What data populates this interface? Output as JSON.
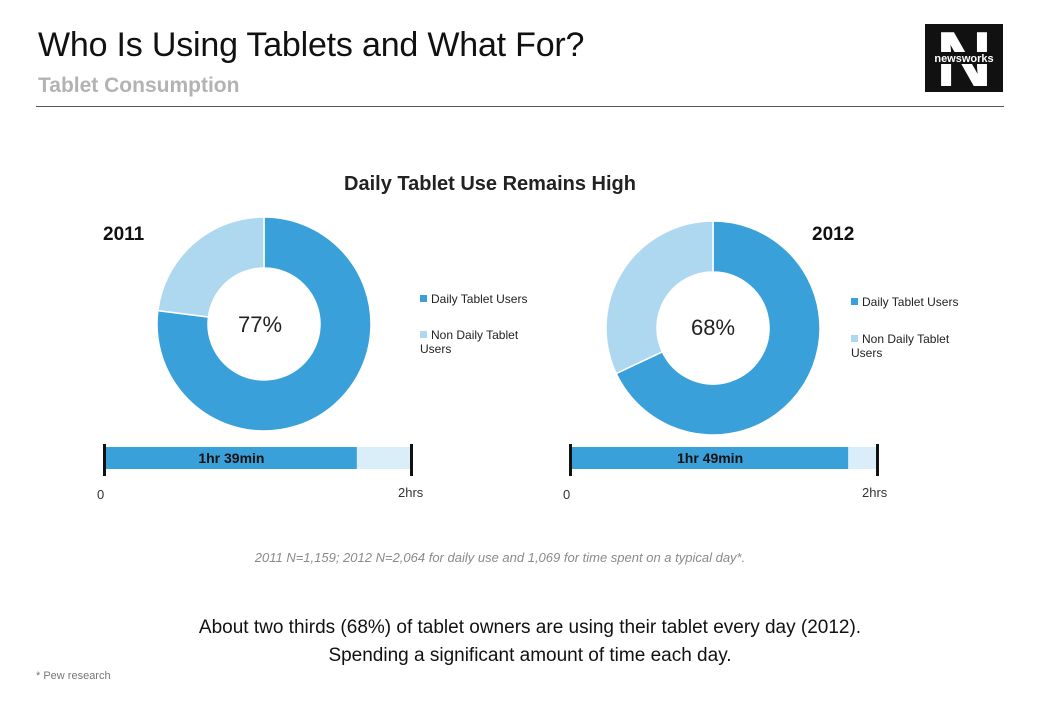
{
  "header": {
    "title": "Who Is Using Tablets and What For?",
    "subtitle": "Tablet Consumption",
    "logo_letter": "N",
    "logo_text": "newsworks"
  },
  "chart_data": [
    {
      "type": "pie",
      "title": "Daily Tablet Use Remains High",
      "subtitle": "2011",
      "categories": [
        "Daily Tablet Users",
        "Non Daily Tablet Users"
      ],
      "values": [
        77,
        23
      ],
      "center_label": "77%",
      "colors": [
        "#39a0d9",
        "#aed8ef"
      ],
      "legend": "right"
    },
    {
      "type": "pie",
      "subtitle": "2012",
      "categories": [
        "Daily Tablet Users",
        "Non Daily Tablet Users"
      ],
      "values": [
        68,
        32
      ],
      "center_label": "68%",
      "colors": [
        "#39a0d9",
        "#aed8ef"
      ],
      "legend": "right"
    },
    {
      "type": "bar",
      "orientation": "horizontal",
      "values_minutes": [
        99
      ],
      "value_label": "1hr 39min",
      "xlim_minutes": [
        0,
        120
      ],
      "tick_labels": [
        "0",
        "2hrs"
      ],
      "colors": [
        "#39a0d9",
        "#daeef9"
      ]
    },
    {
      "type": "bar",
      "orientation": "horizontal",
      "values_minutes": [
        109
      ],
      "value_label": "1hr 49min",
      "xlim_minutes": [
        0,
        120
      ],
      "tick_labels": [
        "0",
        "2hrs"
      ],
      "colors": [
        "#39a0d9",
        "#daeef9"
      ]
    }
  ],
  "footnote": "2011 N=1,159; 2012 N=2,064 for daily use and 1,069 for time spent on a typical day*.",
  "summary_line1": "About two thirds (68%) of tablet owners are using their tablet every day (2012).",
  "summary_line2": "Spending a significant amount of time each day.",
  "source": "* Pew research"
}
